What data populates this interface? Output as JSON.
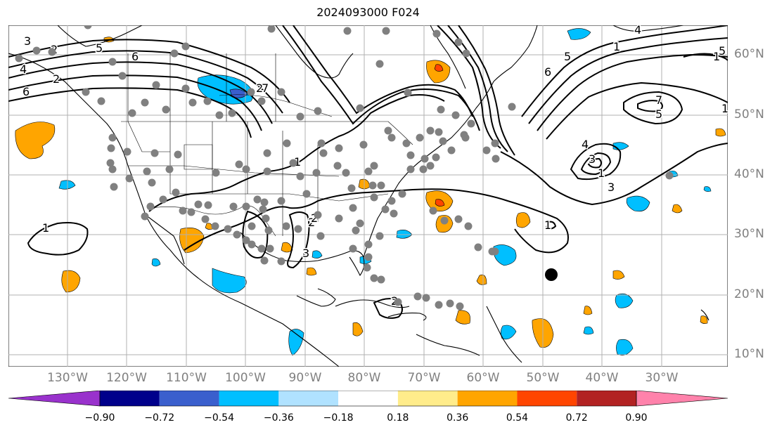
{
  "title": "2024093000 F024",
  "map": {
    "lat_labels": [
      "60°N",
      "50°N",
      "40°N",
      "30°N",
      "20°N",
      "10°N"
    ],
    "lon_labels": [
      "130°W",
      "120°W",
      "110°W",
      "100°W",
      "90°W",
      "80°W",
      "70°W",
      "60°W",
      "50°W",
      "40°W",
      "30°W"
    ],
    "contour_labels": [
      "3",
      "2",
      "5",
      "6",
      "4",
      "6",
      "2",
      "1",
      "1",
      "2",
      "3",
      "7",
      "2",
      "1",
      "6",
      "5",
      "4",
      "1",
      "7",
      "5",
      "4",
      "3",
      "1",
      "3",
      "1",
      "5",
      "2",
      "1",
      "2"
    ]
  },
  "colorbar": {
    "levels": [
      "−0.90",
      "−0.72",
      "−0.54",
      "−0.36",
      "−0.18",
      "0.18",
      "0.36",
      "0.54",
      "0.72",
      "0.90"
    ],
    "colors": [
      "#9932cc",
      "#00008b",
      "#3a5fcd",
      "#00bfff",
      "#b0e2ff",
      "#ffffff",
      "#ffec8b",
      "#ffa500",
      "#ff4500",
      "#b22222",
      "#ff82ab"
    ]
  }
}
